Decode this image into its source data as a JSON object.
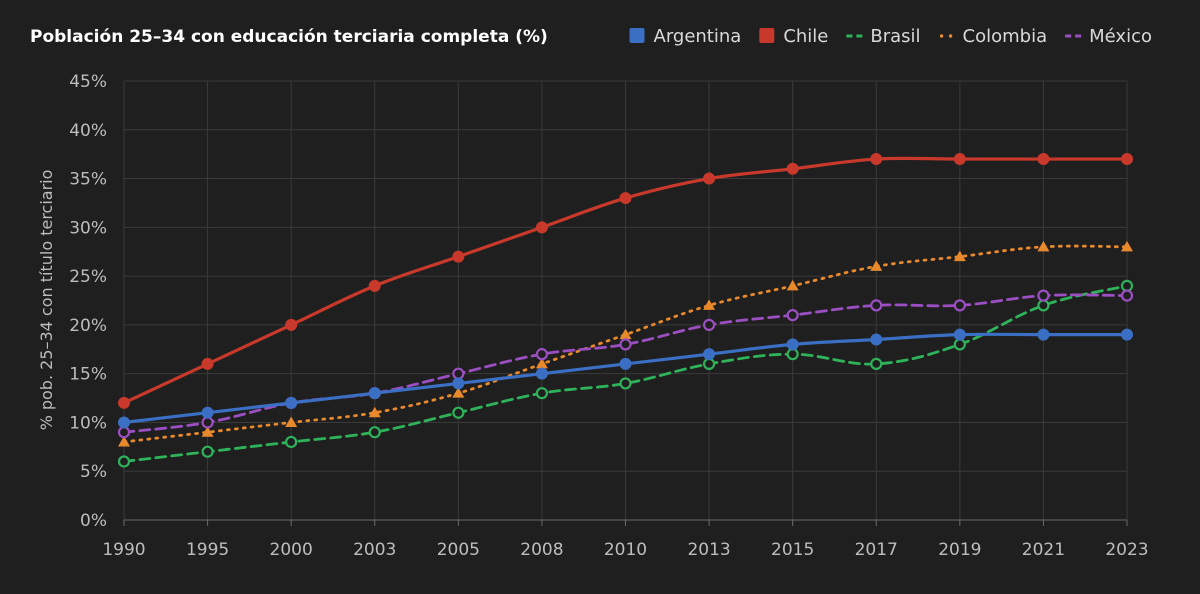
{
  "chart_data": {
    "type": "line",
    "title": "Población 25–34 con educación terciaria completa (%)",
    "ylabel": "% pob. 25–34 con título terciario",
    "xlabel": "",
    "categories": [
      "1990",
      "1995",
      "2000",
      "2003",
      "2005",
      "2008",
      "2010",
      "2013",
      "2015",
      "2017",
      "2019",
      "2021",
      "2023"
    ],
    "ylim": [
      0,
      45
    ],
    "yticks": [
      0,
      5,
      10,
      15,
      20,
      25,
      30,
      35,
      40,
      45
    ],
    "ytick_suffix": "%",
    "grid": true,
    "legend_position": "top-right",
    "series": [
      {
        "name": "Argentina",
        "color": "#3a6fc4",
        "style": "solid",
        "marker": "circle-filled",
        "values": [
          10,
          11,
          12,
          13,
          14,
          15,
          16,
          17,
          18,
          18.5,
          19,
          19,
          19
        ]
      },
      {
        "name": "Chile",
        "color": "#c9392b",
        "style": "solid",
        "marker": "circle-filled",
        "values": [
          12,
          16,
          20,
          24,
          27,
          30,
          33,
          35,
          36,
          37,
          37,
          37,
          37
        ]
      },
      {
        "name": "Brasil",
        "color": "#2fb35a",
        "style": "dashed",
        "marker": "circle-open",
        "values": [
          6,
          7,
          8,
          9,
          11,
          13,
          14,
          16,
          17,
          16,
          18,
          22,
          24
        ]
      },
      {
        "name": "Colombia",
        "color": "#e8892c",
        "style": "dotted",
        "marker": "triangle",
        "values": [
          8,
          9,
          10,
          11,
          13,
          16,
          19,
          22,
          24,
          26,
          27,
          28,
          28
        ]
      },
      {
        "name": "México",
        "color": "#9b4fc2",
        "style": "dashed",
        "marker": "circle-open",
        "values": [
          9,
          10,
          12,
          13,
          15,
          17,
          18,
          20,
          21,
          22,
          22,
          23,
          23
        ]
      }
    ]
  }
}
